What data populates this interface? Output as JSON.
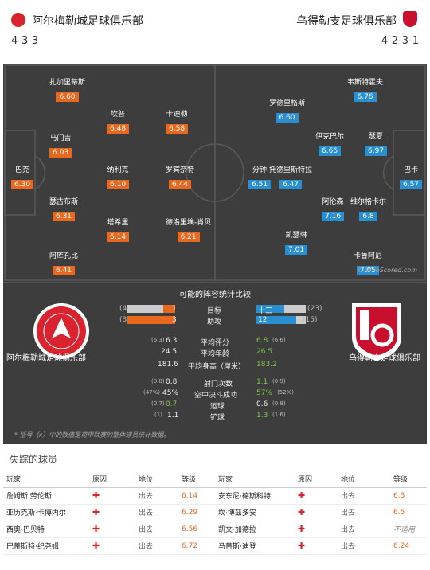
{
  "header": {
    "home_name": "阿尔梅勒城足球俱乐部",
    "home_formation": "4-3-3",
    "away_name": "乌得勒支足球俱乐部",
    "away_formation": "4-2-3-1"
  },
  "pitch": {
    "home_players": [
      {
        "name": "扎加里蒂斯",
        "rating": "6.60"
      },
      {
        "name": "坎普",
        "rating": "6.48"
      },
      {
        "name": "卡迪勒",
        "rating": "6.58"
      },
      {
        "name": "马门吉",
        "rating": "6.03"
      },
      {
        "name": "巴克",
        "rating": "6.30"
      },
      {
        "name": "纳利克",
        "rating": "6.10"
      },
      {
        "name": "罗宾奈特",
        "rating": "6.44"
      },
      {
        "name": "瑟古布斯",
        "rating": "6.31"
      },
      {
        "name": "塔希里",
        "rating": "6.14"
      },
      {
        "name": "德洛里埃-肖贝",
        "rating": "6.21"
      },
      {
        "name": "阿库孔比",
        "rating": "6.41"
      }
    ],
    "away_players": [
      {
        "name": "韦斯特霍夫",
        "rating": "6.76"
      },
      {
        "name": "罗德里格斯",
        "rating": "6.60"
      },
      {
        "name": "伊克巴尔",
        "rating": "6.66"
      },
      {
        "name": "瑟夏",
        "rating": "6.97"
      },
      {
        "name": "巴卡",
        "rating": "6.57"
      },
      {
        "name": "分钟",
        "rating": "6.51"
      },
      {
        "name": "托德里斯特拉",
        "rating": "6.47"
      },
      {
        "name": "阿伦森",
        "rating": "7.16"
      },
      {
        "name": "维尔格卡尔",
        "rating": "6.8"
      },
      {
        "name": "凯瑟琳",
        "rating": "7.01"
      },
      {
        "name": "卡鲁阿尼",
        "rating": "7.05"
      }
    ],
    "watermark": "© WhoScored.com"
  },
  "stats": {
    "title": "可能的阵容统计比较",
    "home_crest_name": "阿尔梅勒城足球俱乐部",
    "away_crest_name": "乌得勒支足球俱乐部",
    "bars": [
      {
        "label": "目标",
        "home_season": "(4)",
        "home": "1",
        "home_frac": 0.25,
        "away": "十三",
        "away_season": "(23)",
        "away_frac": 0.56
      },
      {
        "label": "助攻",
        "home_season": "(3)",
        "home": "3",
        "home_frac": 1.0,
        "away": "12",
        "away_season": "(15)",
        "away_frac": 0.8
      }
    ],
    "rows1": [
      {
        "label": "平均评分",
        "home_season": "(6.3)",
        "home": "6.3",
        "away": "6.8",
        "away_season": "(6.6)"
      },
      {
        "label": "平均年龄",
        "home_season": "",
        "home": "24.5",
        "away": "26.5",
        "away_season": ""
      },
      {
        "label": "平均身高（厘米）",
        "home_season": "",
        "home": "181.6",
        "away": "183.2",
        "away_season": ""
      }
    ],
    "rows2": [
      {
        "label": "射门次数",
        "home_season": "(0.8)",
        "home": "0.8",
        "away": "1.1",
        "away_season": "(0.9)"
      },
      {
        "label": "空中决斗成功",
        "home_season": "(47%)",
        "home": "45%",
        "away": "57%",
        "away_season": "(52%)"
      },
      {
        "label": "运球",
        "home_season": "(0.7)",
        "home": "0.7",
        "away": "0.6",
        "away_season": "(0.8)"
      },
      {
        "label": "铲球",
        "home_season": "(1)",
        "home": "1.1",
        "away": "1.3",
        "away_season": "(1.6)"
      }
    ],
    "footnote": "* 括号（x）中的数值是荷甲联赛的整体球员统计数据。"
  },
  "missing": {
    "title": "失踪的球员",
    "headers": [
      "玩家",
      "原因",
      "地位",
      "等级",
      "玩家",
      "原因",
      "地位",
      "等级"
    ],
    "rows": [
      {
        "h_name": "詹姆斯·劳伦斯",
        "h_status": "出去",
        "h_rating": "6.14",
        "a_name": "安东尼·德斯科特",
        "a_status": "出去",
        "a_rating": "6.3"
      },
      {
        "h_name": "亚历克斯·卡博内尔",
        "h_status": "出去",
        "h_rating": "6.29",
        "a_name": "坎·博兹多安",
        "a_status": "出去",
        "a_rating": "6.5"
      },
      {
        "h_name": "西奥·巴贝特",
        "h_status": "出去",
        "h_rating": "6.56",
        "a_name": "凯文·加德拉",
        "a_status": "出去",
        "a_rating": "不适用"
      },
      {
        "h_name": "巴蒂斯特·纪尧姆",
        "h_status": "出去",
        "h_rating": "6.72",
        "a_name": "马蒂斯·迪登",
        "a_status": "出去",
        "a_rating": "6.24"
      }
    ]
  },
  "colors": {
    "home": "#e8681f",
    "away": "#2a8fd0",
    "pitch": "#3d3d3d",
    "injury": "#d9232e"
  }
}
